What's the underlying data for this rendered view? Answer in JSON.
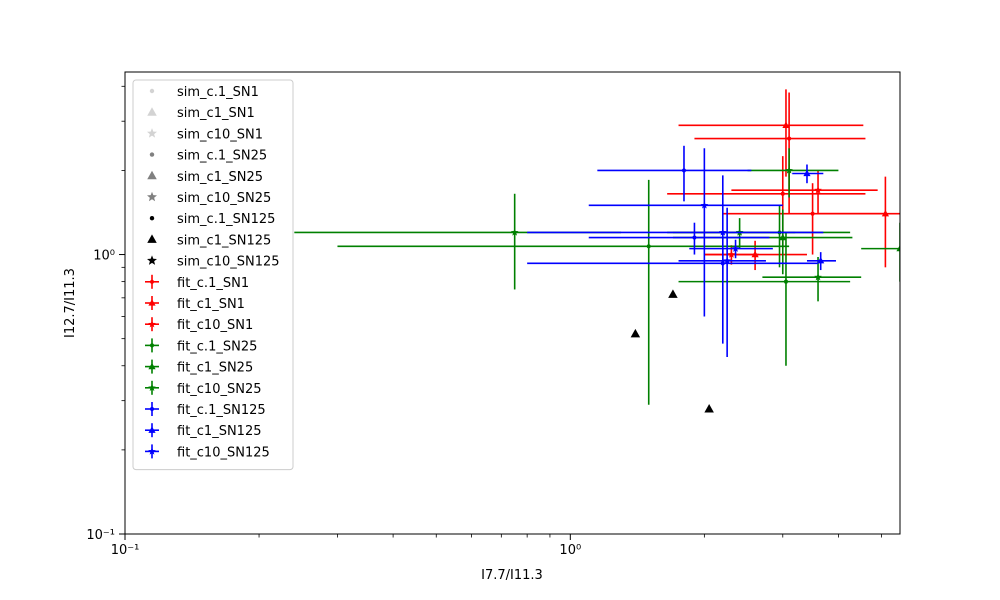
{
  "chart_data": {
    "type": "scatter",
    "title": "",
    "xlabel": "I7.7/I11.3",
    "ylabel": "I12.7/I11.3",
    "xscale": "log",
    "yscale": "log",
    "xlim": [
      0.1,
      5.5
    ],
    "ylim": [
      0.1,
      4.5
    ],
    "x_major_ticks": [
      {
        "value": 0.1,
        "label": "10⁻¹"
      },
      {
        "value": 1,
        "label": "10⁰"
      }
    ],
    "y_major_ticks": [
      {
        "value": 0.1,
        "label": "10⁻¹"
      },
      {
        "value": 1,
        "label": "10⁰"
      }
    ],
    "grid": false,
    "legend_placement": "upper-left",
    "series": [
      {
        "name": "sim_c.1_SN1",
        "kind": "sim",
        "marker": "circle",
        "color": "#d3d3d3",
        "points": []
      },
      {
        "name": "sim_c1_SN1",
        "kind": "sim",
        "marker": "triangle",
        "color": "#d3d3d3",
        "points": []
      },
      {
        "name": "sim_c10_SN1",
        "kind": "sim",
        "marker": "star",
        "color": "#d3d3d3",
        "points": []
      },
      {
        "name": "sim_c.1_SN25",
        "kind": "sim",
        "marker": "circle",
        "color": "#808080",
        "points": []
      },
      {
        "name": "sim_c1_SN25",
        "kind": "sim",
        "marker": "triangle",
        "color": "#808080",
        "points": []
      },
      {
        "name": "sim_c10_SN25",
        "kind": "sim",
        "marker": "star",
        "color": "#808080",
        "points": []
      },
      {
        "name": "sim_c.1_SN125",
        "kind": "sim",
        "marker": "circle",
        "color": "#000000",
        "points": []
      },
      {
        "name": "sim_c1_SN125",
        "kind": "sim",
        "marker": "triangle",
        "color": "#000000",
        "points": [
          {
            "x": 1.4,
            "y": 0.52
          },
          {
            "x": 1.7,
            "y": 0.72
          },
          {
            "x": 2.05,
            "y": 0.28
          }
        ]
      },
      {
        "name": "sim_c10_SN125",
        "kind": "sim",
        "marker": "star",
        "color": "#000000",
        "points": []
      },
      {
        "name": "fit_c.1_SN1",
        "kind": "fit",
        "marker": "circle",
        "color": "#ff0000",
        "points": [
          {
            "x": 3.0,
            "y": 1.65,
            "xerr": [
              1.35,
              1.6
            ],
            "yerr": [
              0.6,
              0.6
            ]
          },
          {
            "x": 3.1,
            "y": 2.6,
            "xerr": [
              1.2,
              1.5
            ],
            "yerr": [
              1.2,
              1.2
            ]
          },
          {
            "x": 3.5,
            "y": 1.4,
            "xerr": [
              1.3,
              1.6
            ],
            "yerr": [
              0.4,
              0.4
            ]
          }
        ]
      },
      {
        "name": "fit_c1_SN1",
        "kind": "fit",
        "marker": "triangle",
        "color": "#ff0000",
        "points": [
          {
            "x": 2.6,
            "y": 1.0,
            "xerr": [
              0.6,
              0.8
            ],
            "yerr": [
              0.12,
              0.12
            ]
          },
          {
            "x": 3.05,
            "y": 2.9,
            "xerr": [
              1.3,
              1.5
            ],
            "yerr": [
              1.0,
              1.0
            ]
          },
          {
            "x": 5.1,
            "y": 1.4,
            "xerr": [
              1.5,
              1.5
            ],
            "yerr": [
              0.5,
              0.5
            ]
          }
        ]
      },
      {
        "name": "fit_c10_SN1",
        "kind": "fit",
        "marker": "star",
        "color": "#ff0000",
        "points": [
          {
            "x": 2.3,
            "y": 1.0,
            "xerr": [
              0.3,
              0.35
            ],
            "yerr": [
              0.08,
              0.08
            ]
          },
          {
            "x": 3.6,
            "y": 1.7,
            "xerr": [
              1.3,
              1.3
            ],
            "yerr": [
              0.3,
              0.3
            ]
          }
        ]
      },
      {
        "name": "fit_c.1_SN25",
        "kind": "fit",
        "marker": "circle",
        "color": "#008000",
        "points": [
          {
            "x": 3.05,
            "y": 0.8,
            "xerr": [
              1.3,
              1.2
            ],
            "yerr": [
              0.4,
              0.4
            ]
          },
          {
            "x": 1.5,
            "y": 1.07,
            "xerr": [
              1.2,
              1.6
            ],
            "yerr": [
              0.78,
              0.78
            ]
          },
          {
            "x": 2.95,
            "y": 1.2,
            "xerr": [
              1.3,
              1.3
            ],
            "yerr": [
              0.3,
              0.3
            ]
          }
        ]
      },
      {
        "name": "fit_c1_SN25",
        "kind": "fit",
        "marker": "triangle",
        "color": "#008000",
        "points": [
          {
            "x": 3.0,
            "y": 1.15,
            "xerr": [
              1.3,
              1.3
            ],
            "yerr": [
              0.3,
              0.3
            ]
          },
          {
            "x": 5.5,
            "y": 1.05,
            "xerr": [
              1.0,
              1.0
            ],
            "yerr": [
              0.25,
              0.25
            ]
          }
        ]
      },
      {
        "name": "fit_c10_SN25",
        "kind": "fit",
        "marker": "star",
        "color": "#008000",
        "points": [
          {
            "x": 0.75,
            "y": 1.2,
            "xerr": [
              0.51,
              0.55
            ],
            "yerr": [
              0.45,
              0.45
            ]
          },
          {
            "x": 3.1,
            "y": 2.0,
            "xerr": [
              0.6,
              0.9
            ],
            "yerr": [
              0.4,
              0.4
            ]
          },
          {
            "x": 3.6,
            "y": 0.83,
            "xerr": [
              0.9,
              0.9
            ],
            "yerr": [
              0.15,
              0.15
            ]
          },
          {
            "x": 2.4,
            "y": 1.2,
            "xerr": [
              0.7,
              0.8
            ],
            "yerr": [
              0.15,
              0.15
            ]
          }
        ]
      },
      {
        "name": "fit_c.1_SN125",
        "kind": "fit",
        "marker": "circle",
        "color": "#0000ff",
        "points": [
          {
            "x": 1.8,
            "y": 2.0,
            "xerr": [
              0.65,
              0.75
            ],
            "yerr": [
              0.45,
              0.45
            ]
          },
          {
            "x": 1.9,
            "y": 1.15,
            "xerr": [
              0.8,
              0.9
            ],
            "yerr": [
              0.15,
              0.15
            ]
          },
          {
            "x": 2.2,
            "y": 0.93,
            "xerr": [
              1.4,
              1.4
            ],
            "yerr": [
              0.12,
              0.12
            ]
          }
        ]
      },
      {
        "name": "fit_c1_SN125",
        "kind": "fit",
        "marker": "triangle",
        "color": "#0000ff",
        "points": [
          {
            "x": 3.4,
            "y": 1.95,
            "xerr": [
              0.25,
              0.3
            ],
            "yerr": [
              0.15,
              0.15
            ]
          },
          {
            "x": 3.65,
            "y": 0.95,
            "xerr": [
              0.25,
              0.3
            ],
            "yerr": [
              0.07,
              0.07
            ]
          }
        ]
      },
      {
        "name": "fit_c10_SN125",
        "kind": "fit",
        "marker": "star",
        "color": "#0000ff",
        "points": [
          {
            "x": 2.0,
            "y": 1.5,
            "xerr": [
              0.9,
              1.0
            ],
            "yerr": [
              0.9,
              0.9
            ]
          },
          {
            "x": 2.2,
            "y": 1.2,
            "xerr": [
              1.4,
              1.5
            ],
            "yerr": [
              0.72,
              0.72
            ]
          },
          {
            "x": 2.25,
            "y": 0.95,
            "xerr": [
              0.5,
              0.5
            ],
            "yerr": [
              0.52,
              0.52
            ]
          },
          {
            "x": 2.35,
            "y": 1.05,
            "xerr": [
              0.5,
              0.5
            ],
            "yerr": [
              0.08,
              0.08
            ]
          }
        ]
      }
    ]
  }
}
